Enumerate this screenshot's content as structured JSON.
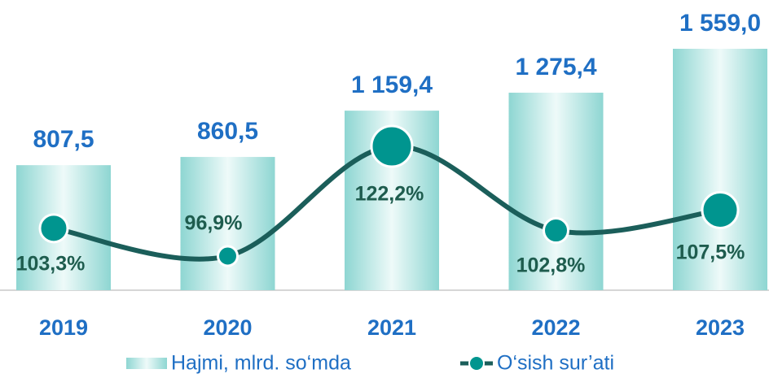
{
  "chart_data": {
    "type": "bar_line",
    "categories": [
      "2019",
      "2020",
      "2021",
      "2022",
      "2023"
    ],
    "series": [
      {
        "name": "Hajmi, mlrd. so‘mda",
        "type": "bar",
        "color": "#7fd0cc",
        "values": [
          807.5,
          860.5,
          1159.4,
          1275.4,
          1559.0
        ],
        "value_labels": [
          "807,5",
          "860,5",
          "1 159,4",
          "1 275,4",
          "1 559,0"
        ]
      },
      {
        "name": "O‘sish sur’ati",
        "type": "line",
        "axis": "y2",
        "color": "#00958f",
        "values": [
          103.3,
          96.9,
          122.2,
          102.8,
          107.5
        ],
        "value_labels": [
          "103,3%",
          "96,9%",
          "122,2%",
          "102,8%",
          "107,5%"
        ]
      }
    ]
  }
}
